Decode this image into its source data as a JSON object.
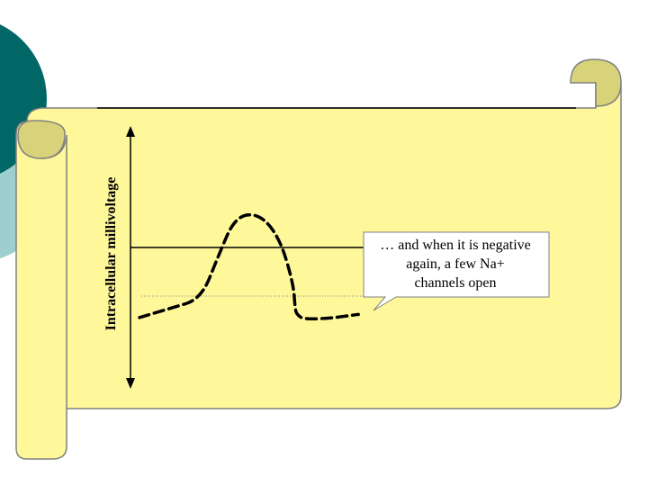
{
  "colors": {
    "scroll_fill": "#FFF89A",
    "scroll_shade": "#D8D37A",
    "scroll_outline": "#808080",
    "deco_circle_dark": "#006666",
    "deco_circle_light": "#9ECFCF",
    "callout_fill": "#FFFFFF",
    "ink": "#000000"
  },
  "axis": {
    "ylabel": "Intracellular millivoltage"
  },
  "callout": {
    "lines": [
      "… and when it is negative",
      "again, a few Na+",
      "channels open"
    ]
  },
  "chart_data": {
    "type": "line",
    "title": "",
    "xlabel": "",
    "ylabel": "Intracellular millivoltage",
    "series": [
      {
        "style": "dashed",
        "x": [
          0,
          0.9,
          1.8,
          2.3,
          2.8,
          3.5,
          4.1,
          4.5,
          4.55,
          4.6,
          4.8,
          5.6,
          6.4
        ],
        "y": [
          -0.35,
          -0.2,
          -0.05,
          0.65,
          1.3,
          1.35,
          0.95,
          0.2,
          -0.2,
          -0.3,
          -0.38,
          -0.36,
          -0.3
        ]
      }
    ],
    "reference_lines": [
      {
        "style": "solid",
        "y": 0.2
      },
      {
        "style": "dotted",
        "y": 0
      }
    ],
    "annotation": "… and when it is negative again, a few Na+ channels open"
  }
}
